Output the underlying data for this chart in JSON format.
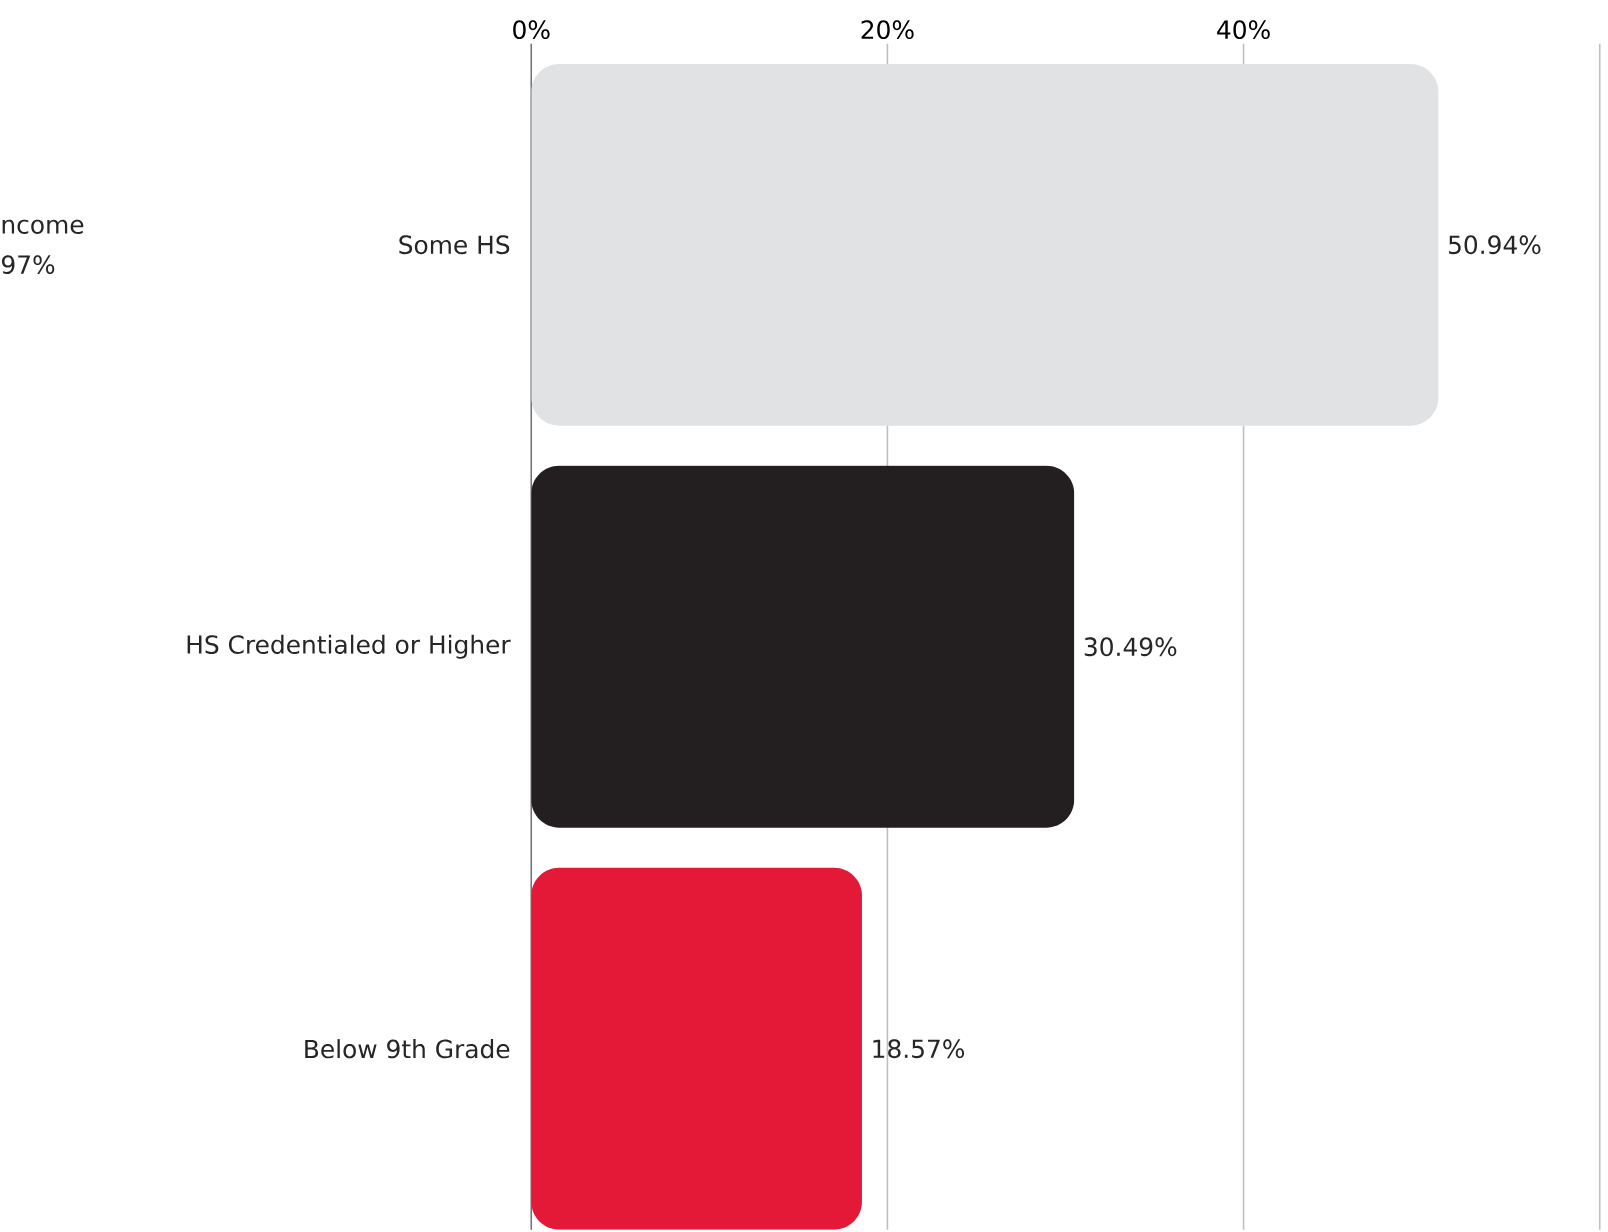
{
  "chart_data": {
    "type": "bar",
    "orientation": "horizontal",
    "categories": [
      "Some HS",
      "HS Credentialed or Higher",
      "Below 9th Grade"
    ],
    "values": [
      50.94,
      30.49,
      18.57
    ],
    "colors": [
      "#e1e2e4",
      "#231f20",
      "#e31937"
    ],
    "value_labels": [
      "50.94%",
      "30.49%",
      "18.57%"
    ],
    "xlim": [
      0,
      60
    ],
    "xticks": [
      {
        "value": 0,
        "label": "0%"
      },
      {
        "value": 20,
        "label": "20%"
      },
      {
        "value": 40,
        "label": "40%"
      },
      {
        "value": 60,
        "label": null
      }
    ],
    "grid": "x",
    "annotations": [
      "ncome",
      "97%"
    ]
  }
}
